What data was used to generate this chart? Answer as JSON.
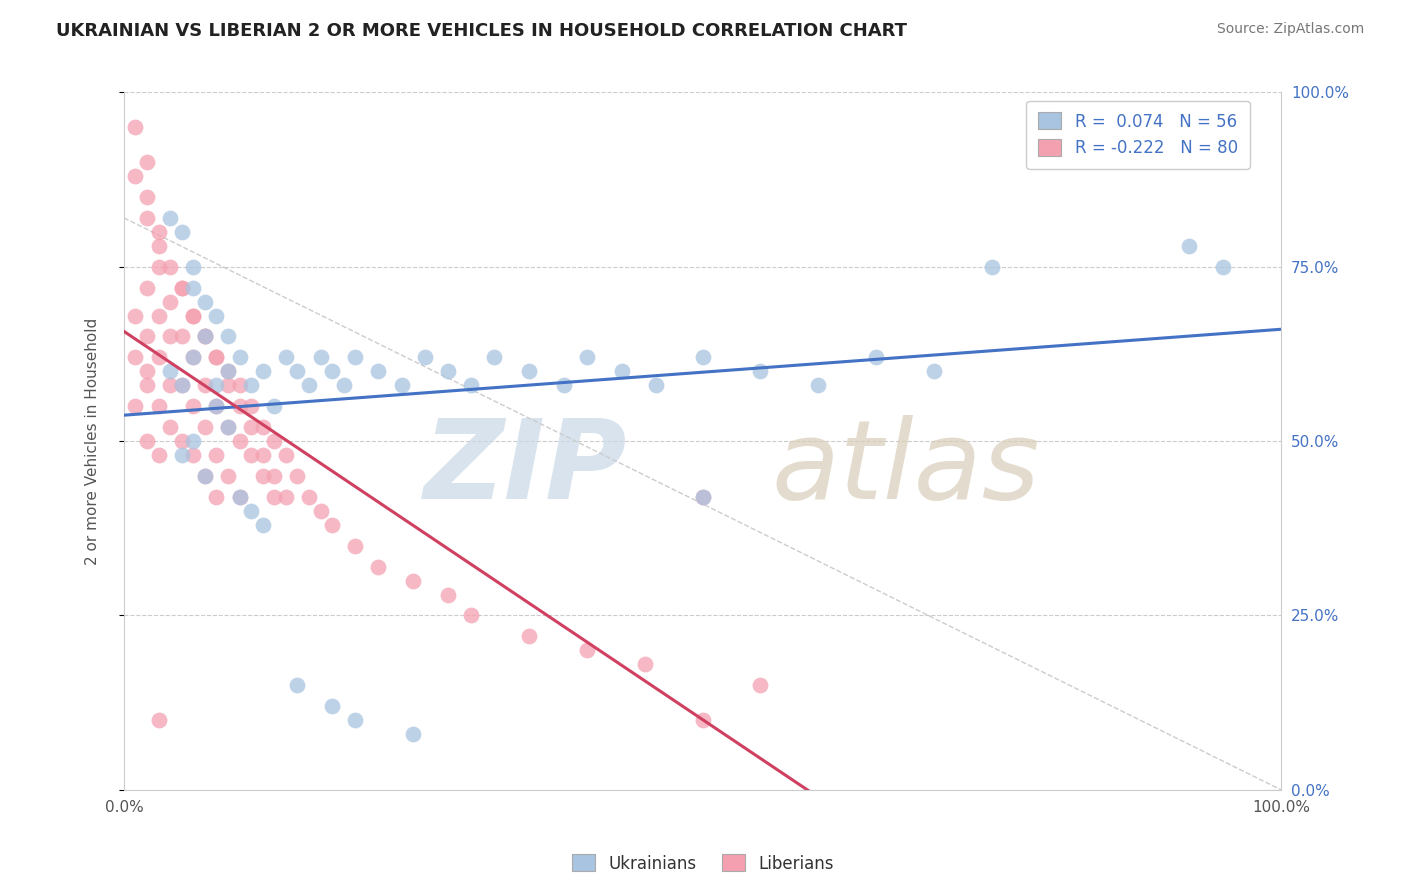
{
  "title": "UKRAINIAN VS LIBERIAN 2 OR MORE VEHICLES IN HOUSEHOLD CORRELATION CHART",
  "source": "Source: ZipAtlas.com",
  "ylabel": "2 or more Vehicles in Household",
  "xlim": [
    0.0,
    1.0
  ],
  "ylim": [
    0.0,
    1.0
  ],
  "ytick_positions": [
    0.0,
    0.25,
    0.5,
    0.75,
    1.0
  ],
  "ytick_labels": [
    "0.0%",
    "25.0%",
    "50.0%",
    "75.0%",
    "100.0%"
  ],
  "legend_r_ukrainian": "R =  0.074",
  "legend_n_ukrainian": "N = 56",
  "legend_r_liberian": "R = -0.222",
  "legend_n_liberian": "N = 80",
  "ukrainian_color": "#a8c4e0",
  "liberian_color": "#f4a0b0",
  "trend_ukrainian_color": "#4472c4",
  "trend_liberian_color": "#d04060",
  "ukrainian_x": [
    0.04,
    0.05,
    0.06,
    0.07,
    0.08,
    0.09,
    0.1,
    0.11,
    0.12,
    0.13,
    0.14,
    0.15,
    0.16,
    0.17,
    0.18,
    0.19,
    0.2,
    0.22,
    0.24,
    0.26,
    0.28,
    0.3,
    0.32,
    0.35,
    0.38,
    0.4,
    0.43,
    0.46,
    0.5,
    0.55,
    0.6,
    0.65,
    0.7,
    0.75,
    0.08,
    0.09,
    0.06,
    0.05,
    0.07,
    0.1,
    0.11,
    0.12,
    0.09,
    0.08,
    0.07,
    0.06,
    0.95,
    0.92,
    0.15,
    0.18,
    0.2,
    0.25,
    0.06,
    0.05,
    0.04,
    0.5
  ],
  "ukrainian_y": [
    0.6,
    0.58,
    0.62,
    0.65,
    0.58,
    0.6,
    0.62,
    0.58,
    0.6,
    0.55,
    0.62,
    0.6,
    0.58,
    0.62,
    0.6,
    0.58,
    0.62,
    0.6,
    0.58,
    0.62,
    0.6,
    0.58,
    0.62,
    0.6,
    0.58,
    0.62,
    0.6,
    0.58,
    0.62,
    0.6,
    0.58,
    0.62,
    0.6,
    0.75,
    0.55,
    0.52,
    0.5,
    0.48,
    0.45,
    0.42,
    0.4,
    0.38,
    0.65,
    0.68,
    0.7,
    0.72,
    0.75,
    0.78,
    0.15,
    0.12,
    0.1,
    0.08,
    0.75,
    0.8,
    0.82,
    0.42
  ],
  "liberian_x": [
    0.01,
    0.01,
    0.01,
    0.02,
    0.02,
    0.02,
    0.02,
    0.02,
    0.03,
    0.03,
    0.03,
    0.03,
    0.03,
    0.04,
    0.04,
    0.04,
    0.04,
    0.05,
    0.05,
    0.05,
    0.05,
    0.06,
    0.06,
    0.06,
    0.06,
    0.07,
    0.07,
    0.07,
    0.07,
    0.08,
    0.08,
    0.08,
    0.08,
    0.09,
    0.09,
    0.09,
    0.1,
    0.1,
    0.1,
    0.11,
    0.11,
    0.12,
    0.12,
    0.13,
    0.13,
    0.14,
    0.15,
    0.16,
    0.17,
    0.18,
    0.2,
    0.22,
    0.25,
    0.28,
    0.3,
    0.35,
    0.4,
    0.45,
    0.5,
    0.55,
    0.03,
    0.02,
    0.02,
    0.01,
    0.01,
    0.02,
    0.03,
    0.04,
    0.05,
    0.06,
    0.07,
    0.08,
    0.09,
    0.1,
    0.11,
    0.12,
    0.13,
    0.14,
    0.03,
    0.5
  ],
  "liberian_y": [
    0.55,
    0.62,
    0.68,
    0.72,
    0.65,
    0.6,
    0.58,
    0.5,
    0.75,
    0.68,
    0.62,
    0.55,
    0.48,
    0.7,
    0.65,
    0.58,
    0.52,
    0.72,
    0.65,
    0.58,
    0.5,
    0.68,
    0.62,
    0.55,
    0.48,
    0.65,
    0.58,
    0.52,
    0.45,
    0.62,
    0.55,
    0.48,
    0.42,
    0.6,
    0.52,
    0.45,
    0.58,
    0.5,
    0.42,
    0.55,
    0.48,
    0.52,
    0.45,
    0.5,
    0.42,
    0.48,
    0.45,
    0.42,
    0.4,
    0.38,
    0.35,
    0.32,
    0.3,
    0.28,
    0.25,
    0.22,
    0.2,
    0.18,
    0.42,
    0.15,
    0.8,
    0.85,
    0.9,
    0.95,
    0.88,
    0.82,
    0.78,
    0.75,
    0.72,
    0.68,
    0.65,
    0.62,
    0.58,
    0.55,
    0.52,
    0.48,
    0.45,
    0.42,
    0.1,
    0.1
  ]
}
